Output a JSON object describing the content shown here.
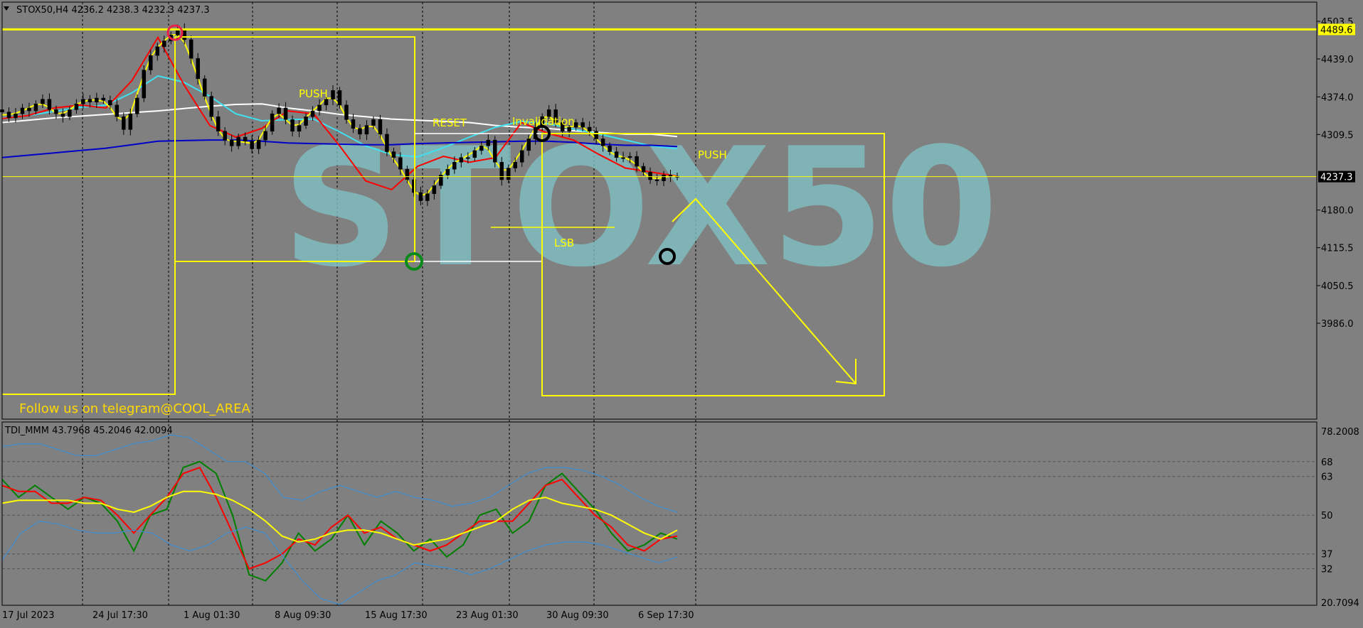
{
  "window": {
    "symbol_header": "STOX50,H4  4236.2 4238.3 4232.3 4237.3",
    "watermark": "STOX50",
    "telegram_note": "Follow us on telegram@COOL_AREA"
  },
  "colors": {
    "background": "#808080",
    "grid": "#000000",
    "annotation": "#ffff00",
    "ma_white": "#ffffff",
    "ma_cyan": "#40e0f0",
    "ma_blue": "#0000c8",
    "ma_red": "#ff0000",
    "ma_yellow": "#ffff00",
    "tdi_green": "#008000",
    "tdi_red": "#ff0000",
    "tdi_yellow": "#ffff00",
    "tdi_band": "#3c8cd0",
    "watermark": "#7fc4c8"
  },
  "chart_data": [
    {
      "type": "candlestick",
      "title": "STOX50,H4",
      "ohlc_last": {
        "open": 4236.2,
        "high": 4238.3,
        "low": 4232.3,
        "close": 4237.3
      },
      "x_ticks": [
        "17 Jul 2023",
        "24 Jul 17:30",
        "1 Aug 01:30",
        "8 Aug 09:30",
        "15 Aug 17:30",
        "23 Aug 01:30",
        "30 Aug 09:30",
        "6 Sep 17:30"
      ],
      "y_ticks": [
        4503.5,
        4439.0,
        4374.0,
        4309.5,
        4180.0,
        4115.5,
        4050.5,
        3986.0
      ],
      "ylim": [
        3968,
        4520
      ],
      "price_labels": [
        {
          "label": "4489.6",
          "value": 4489.6
        },
        {
          "label": "4237.3",
          "value": 4237.3
        }
      ],
      "close_series": [
        4348,
        4338,
        4345,
        4355,
        4350,
        4362,
        4370,
        4352,
        4345,
        4340,
        4352,
        4362,
        4370,
        4365,
        4372,
        4368,
        4360,
        4340,
        4318,
        4345,
        4372,
        4420,
        4445,
        4460,
        4470,
        4480,
        4490,
        4472,
        4440,
        4405,
        4375,
        4340,
        4315,
        4300,
        4290,
        4305,
        4298,
        4285,
        4300,
        4315,
        4345,
        4355,
        4335,
        4315,
        4325,
        4340,
        4350,
        4360,
        4370,
        4385,
        4360,
        4335,
        4320,
        4310,
        4325,
        4335,
        4310,
        4280,
        4270,
        4250,
        4232,
        4210,
        4196,
        4208,
        4222,
        4240,
        4250,
        4262,
        4270,
        4270,
        4282,
        4290,
        4300,
        4262,
        4232,
        4252,
        4262,
        4282,
        4302,
        4322,
        4340,
        4352,
        4330,
        4315,
        4322,
        4330,
        4322,
        4315,
        4302,
        4290,
        4280,
        4270,
        4270,
        4272,
        4255,
        4245,
        4232,
        4230,
        4240,
        4238,
        4237
      ],
      "moving_averages": [
        {
          "color": "white",
          "values": [
            4330,
            4334,
            4338,
            4341,
            4344,
            4347,
            4350,
            4354,
            4358,
            4361,
            4362,
            4355,
            4350,
            4344,
            4340,
            4336,
            4334,
            4332,
            4330,
            4325,
            4322,
            4320,
            4316,
            4313,
            4310,
            4310,
            4306
          ]
        },
        {
          "color": "cyan",
          "values": [
            4338,
            4342,
            4349,
            4356,
            4360,
            4381,
            4410,
            4399,
            4375,
            4345,
            4333,
            4335,
            4336,
            4314,
            4290,
            4275,
            4271,
            4287,
            4305,
            4322,
            4332,
            4328,
            4319,
            4310,
            4300,
            4290,
            4285
          ]
        },
        {
          "color": "blue",
          "values": [
            4270,
            4274,
            4278,
            4282,
            4286,
            4292,
            4298,
            4299,
            4300,
            4300,
            4298,
            4295,
            4294,
            4293,
            4292,
            4292,
            4294,
            4295,
            4296,
            4297,
            4298,
            4298,
            4296,
            4293,
            4291,
            4291,
            4289
          ]
        },
        {
          "color": "red",
          "values": [
            4337,
            4342,
            4355,
            4360,
            4355,
            4402,
            4476,
            4395,
            4325,
            4305,
            4320,
            4350,
            4345,
            4290,
            4230,
            4215,
            4255,
            4272,
            4262,
            4270,
            4330,
            4312,
            4300,
            4275,
            4252,
            4245,
            4238
          ]
        }
      ],
      "annotations": [
        {
          "text": "PUSH",
          "kind": "label"
        },
        {
          "text": "RESET",
          "kind": "label"
        },
        {
          "text": "Invalidation",
          "kind": "label"
        },
        {
          "text": "LSB",
          "kind": "label"
        },
        {
          "text": "PUSH",
          "kind": "label"
        }
      ]
    },
    {
      "type": "line",
      "title": "TDI_MMM 43.7968 45.2046 42.0094",
      "y_ticks": [
        78.2008,
        68,
        63,
        50,
        37,
        32,
        20.7094
      ],
      "y_tick_labels": [
        "78.2008",
        "68",
        "63",
        "50",
        "37",
        "32",
        "20.7094"
      ],
      "ylim": [
        20.7094,
        78.2008
      ],
      "series": [
        {
          "color": "green",
          "values": [
            62,
            56,
            60,
            56,
            52,
            56,
            54,
            48,
            38,
            50,
            52,
            66,
            68,
            64,
            50,
            30,
            28,
            34,
            44,
            38,
            42,
            50,
            40,
            48,
            44,
            38,
            42,
            36,
            40,
            50,
            52,
            44,
            48,
            60,
            64,
            58,
            52,
            44,
            38,
            40,
            44,
            42
          ]
        },
        {
          "color": "red",
          "values": [
            60,
            58,
            58,
            54,
            54,
            56,
            55,
            50,
            44,
            50,
            56,
            64,
            66,
            56,
            44,
            32,
            34,
            37,
            42,
            40,
            46,
            50,
            44,
            46,
            42,
            40,
            38,
            40,
            44,
            48,
            48,
            48,
            54,
            60,
            62,
            56,
            50,
            46,
            40,
            38,
            42,
            43
          ]
        },
        {
          "color": "yellow",
          "values": [
            54,
            55,
            55,
            55,
            55,
            54,
            54,
            52,
            51,
            53,
            56,
            58,
            58,
            57,
            55,
            52,
            48,
            43,
            41,
            42,
            44,
            45,
            45,
            44,
            42,
            40,
            41,
            42,
            44,
            46,
            48,
            52,
            55,
            56,
            54,
            53,
            52,
            50,
            47,
            44,
            42,
            45
          ]
        },
        {
          "color": "upper_band",
          "values": [
            73,
            74,
            74,
            72,
            70,
            70,
            72,
            74,
            75,
            77,
            76,
            72,
            68,
            68,
            64,
            56,
            55,
            58,
            60,
            58,
            56,
            58,
            56,
            55,
            53,
            54,
            56,
            60,
            64,
            66,
            66,
            65,
            63,
            60,
            56,
            53,
            51
          ]
        },
        {
          "color": "lower_band",
          "values": [
            35,
            44,
            48,
            47,
            45,
            44,
            44,
            45,
            44,
            40,
            38,
            40,
            44,
            46,
            44,
            36,
            28,
            22,
            20,
            24,
            28,
            30,
            34,
            33,
            32,
            30,
            32,
            35,
            38,
            40,
            41,
            41,
            40,
            38,
            36,
            34,
            36
          ]
        }
      ]
    }
  ]
}
